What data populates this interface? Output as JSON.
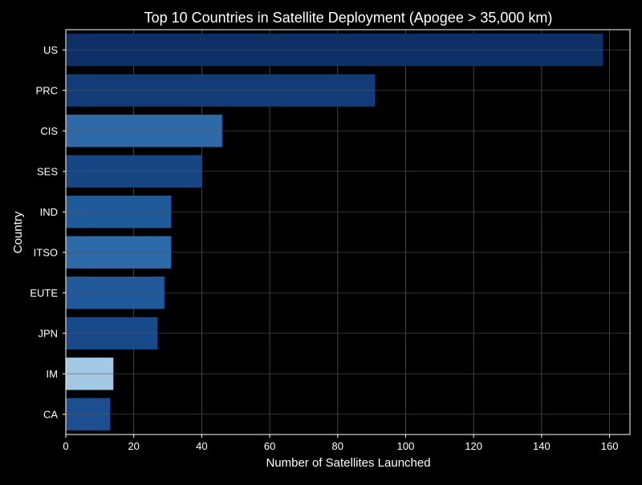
{
  "chart_data": {
    "type": "bar",
    "orientation": "horizontal",
    "title": "Top 10 Countries in Satellite Deployment (Apogee > 35,000 km)",
    "xlabel": "Number of Satellites Launched",
    "ylabel": "Country",
    "categories": [
      "US",
      "PRC",
      "CIS",
      "SES",
      "IND",
      "ITSO",
      "EUTE",
      "JPN",
      "IM",
      "CA"
    ],
    "values": [
      158,
      91,
      46,
      40,
      31,
      31,
      29,
      27,
      14,
      13
    ],
    "bar_colors": [
      "#0f3066",
      "#123c77",
      "#2e6aa8",
      "#164684",
      "#1f5a9a",
      "#2c6aa9",
      "#22599b",
      "#184a8a",
      "#a3c8e3",
      "#1c4f90"
    ],
    "xlim": [
      0,
      166
    ],
    "x_ticks": [
      0,
      20,
      40,
      60,
      80,
      100,
      120,
      140,
      160
    ],
    "grid": true,
    "theme": {
      "background": "#000000",
      "axis_color": "#ffffff",
      "grid_color": "#555555",
      "text_color": "#ffffff"
    }
  }
}
